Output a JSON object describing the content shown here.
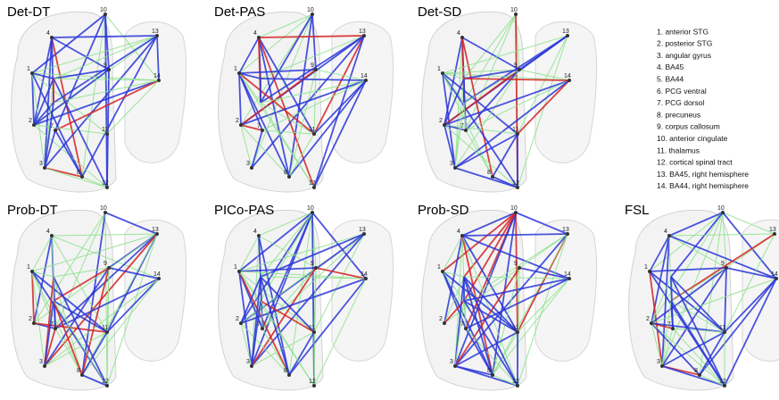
{
  "panels": [
    {
      "title": "Det-DT",
      "node_labels": [
        "10",
        "4",
        "13",
        "1",
        "9",
        "14",
        "2",
        "7",
        "11",
        "3",
        "8",
        "12"
      ]
    },
    {
      "title": "Det-PAS",
      "node_labels": [
        "10",
        "4",
        "13",
        "1",
        "9",
        "14",
        "2",
        "7",
        "11",
        "3",
        "8",
        "12"
      ]
    },
    {
      "title": "Det-SD",
      "node_labels": [
        "10",
        "4",
        "13",
        "1",
        "9",
        "14",
        "2",
        "7",
        "11",
        "3",
        "8",
        "12"
      ]
    },
    {
      "title": "Prob-DT",
      "node_labels": [
        "10",
        "4",
        "13",
        "1",
        "9",
        "14",
        "2",
        "7",
        "11",
        "3",
        "8",
        "12"
      ]
    },
    {
      "title": "PICo-PAS",
      "node_labels": [
        "10",
        "4",
        "13",
        "1",
        "9",
        "14",
        "2",
        "7",
        "11",
        "3",
        "8",
        "12"
      ]
    },
    {
      "title": "Prob-SD",
      "node_labels": [
        "10",
        "4",
        "13",
        "1",
        "9",
        "14",
        "2",
        "7",
        "11",
        "3",
        "8",
        "12"
      ]
    },
    {
      "title": "FSL",
      "node_labels": [
        "10",
        "4",
        "13",
        "1",
        "9",
        "14",
        "2",
        "7",
        "11",
        "3",
        "8",
        "12"
      ]
    }
  ],
  "legend": [
    "1. anterior STG",
    "2. posterior STG",
    "3. angular gyrus",
    "4. BA45",
    "5. BA44",
    "6. PCG ventral",
    "7. PCG dorsol",
    "8. precuneus",
    "9. corpus callosum",
    "10. anterior cingulate",
    "11. thalamus",
    "12. cortical spinal tract",
    "13. BA45, right hemisphere",
    "14. BA44, right hemisphere"
  ]
}
